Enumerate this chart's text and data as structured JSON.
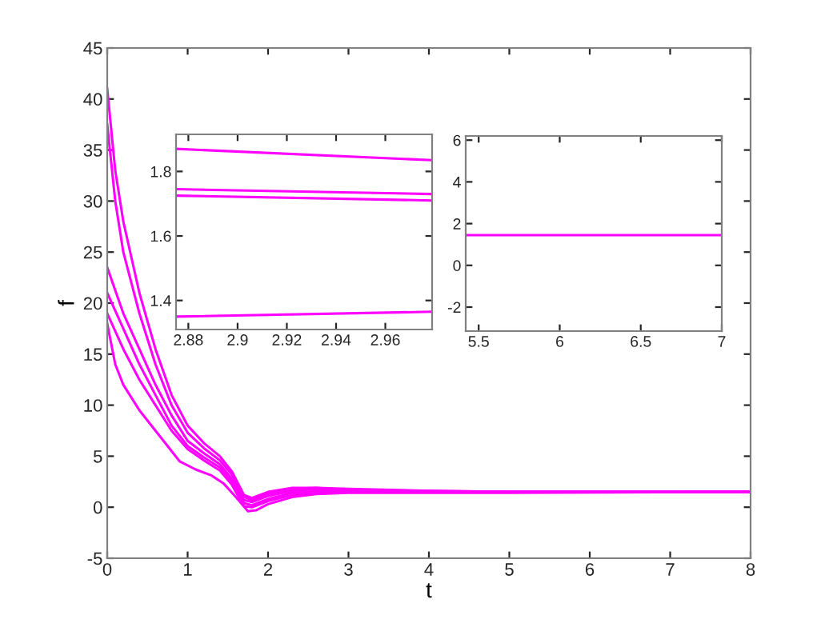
{
  "chart_data": [
    {
      "type": "line",
      "xlabel": "t",
      "ylabel": "f",
      "xlim": [
        0,
        8
      ],
      "ylim": [
        -5,
        45
      ],
      "xticks": [
        0,
        1,
        2,
        3,
        4,
        5,
        6,
        7,
        8
      ],
      "yticks": [
        -5,
        0,
        5,
        10,
        15,
        20,
        25,
        30,
        35,
        40,
        45
      ],
      "grid": false,
      "legend": false,
      "marker": "none",
      "line_style": "solid",
      "series": [
        {
          "color": "#ff00ff",
          "x": [
            0,
            0.1,
            0.2,
            0.4,
            0.6,
            0.8,
            1.0,
            1.2,
            1.4,
            1.55,
            1.7,
            1.8,
            2.0,
            2.3,
            2.6,
            3.0,
            4,
            5,
            6,
            8
          ],
          "values": [
            41,
            33,
            28,
            21,
            15.5,
            11,
            8,
            6.3,
            5,
            3.5,
            1.2,
            0.9,
            1.5,
            1.9,
            1.9,
            1.8,
            1.6,
            1.5,
            1.5,
            1.5
          ]
        },
        {
          "color": "#ff00ff",
          "x": [
            0,
            0.1,
            0.2,
            0.4,
            0.6,
            0.8,
            1.0,
            1.2,
            1.4,
            1.55,
            1.7,
            1.8,
            2.0,
            2.3,
            2.6,
            3.0,
            4,
            5,
            6,
            8
          ],
          "values": [
            37.5,
            30,
            25,
            19,
            14,
            10,
            7.3,
            5.8,
            4.6,
            3.2,
            1.0,
            0.7,
            1.3,
            1.8,
            1.9,
            1.7,
            1.6,
            1.5,
            1.5,
            1.5
          ]
        },
        {
          "color": "#ff00ff",
          "x": [
            0,
            0.2,
            0.4,
            0.6,
            0.8,
            1.0,
            1.2,
            1.4,
            1.55,
            1.7,
            1.8,
            2.0,
            2.3,
            2.6,
            3.0,
            4,
            5,
            6,
            8
          ],
          "values": [
            23.5,
            19,
            15.5,
            12,
            9,
            6.5,
            5.3,
            4.2,
            2.8,
            0.7,
            0.5,
            1.1,
            1.6,
            1.8,
            1.7,
            1.5,
            1.5,
            1.5,
            1.5
          ]
        },
        {
          "color": "#ff00ff",
          "x": [
            0,
            0.2,
            0.4,
            0.6,
            0.8,
            1.0,
            1.2,
            1.4,
            1.55,
            1.7,
            1.8,
            2.0,
            2.3,
            2.6,
            3.0,
            4,
            5,
            6,
            8
          ],
          "values": [
            21,
            17.5,
            14,
            11,
            8,
            6,
            4.9,
            3.9,
            2.5,
            0.4,
            0.2,
            0.8,
            1.4,
            1.6,
            1.6,
            1.5,
            1.5,
            1.5,
            1.5
          ]
        },
        {
          "color": "#ff00ff",
          "x": [
            0,
            0.2,
            0.4,
            0.6,
            0.8,
            1.0,
            1.2,
            1.4,
            1.55,
            1.7,
            1.8,
            2.0,
            2.3,
            2.6,
            3.0,
            4,
            5,
            6,
            8
          ],
          "values": [
            19,
            15.5,
            12.5,
            10,
            7.5,
            5.7,
            4.6,
            3.6,
            2.2,
            0.1,
            0,
            0.6,
            1.2,
            1.4,
            1.5,
            1.5,
            1.5,
            1.5,
            1.5
          ]
        },
        {
          "color": "#ff00ff",
          "x": [
            0,
            0.1,
            0.2,
            0.4,
            0.5,
            0.7,
            0.9,
            1.1,
            1.3,
            1.45,
            1.6,
            1.75,
            1.85,
            2.0,
            2.3,
            2.6,
            3.0,
            4,
            5,
            8
          ],
          "values": [
            18,
            14,
            12,
            9.5,
            8.5,
            6.5,
            4.5,
            3.7,
            3.1,
            2.3,
            1.0,
            -0.4,
            -0.3,
            0.3,
            1.0,
            1.3,
            1.4,
            1.4,
            1.4,
            1.5
          ]
        }
      ]
    },
    {
      "type": "line",
      "xlim": [
        2.875,
        2.979
      ],
      "ylim": [
        1.31,
        1.915
      ],
      "xticks": [
        2.88,
        2.9,
        2.92,
        2.94,
        2.96
      ],
      "yticks": [
        1.4,
        1.6,
        1.8
      ],
      "grid": false,
      "legend": false,
      "marker": "none",
      "line_style": "solid",
      "series": [
        {
          "color": "#ff00ff",
          "x": [
            2.875,
            2.979
          ],
          "values": [
            1.87,
            1.835
          ]
        },
        {
          "color": "#ff00ff",
          "x": [
            2.875,
            2.979
          ],
          "values": [
            1.745,
            1.73
          ]
        },
        {
          "color": "#ff00ff",
          "x": [
            2.875,
            2.979
          ],
          "values": [
            1.725,
            1.71
          ]
        },
        {
          "color": "#ff00ff",
          "x": [
            2.875,
            2.979
          ],
          "values": [
            1.35,
            1.365
          ]
        }
      ]
    },
    {
      "type": "line",
      "xlim": [
        5.42,
        7
      ],
      "ylim": [
        -3.15,
        6.2
      ],
      "xticks": [
        5.5,
        6,
        6.5,
        7
      ],
      "yticks": [
        -2,
        0,
        2,
        4,
        6
      ],
      "grid": false,
      "legend": false,
      "marker": "none",
      "line_style": "solid",
      "series": [
        {
          "color": "#ff00ff",
          "x": [
            5.42,
            7
          ],
          "values": [
            1.45,
            1.45
          ]
        }
      ]
    }
  ]
}
